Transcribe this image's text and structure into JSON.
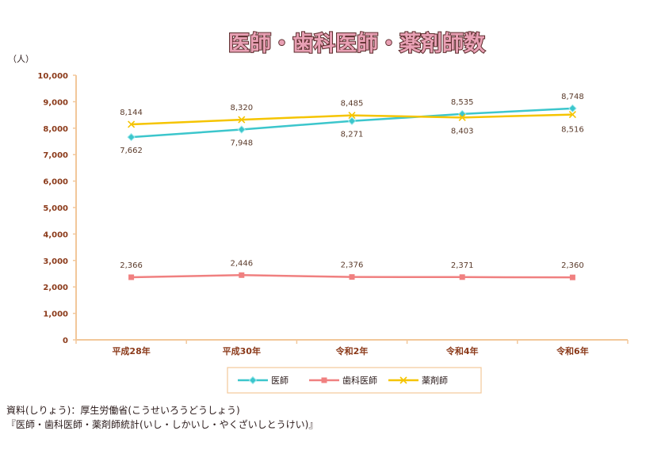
{
  "chart_data": {
    "type": "line",
    "title": "医師・歯科医師・薬剤師数",
    "ylabel": "（人）",
    "xlabel": "",
    "categories": [
      "平成28年",
      "平成30年",
      "令和2年",
      "令和4年",
      "令和6年"
    ],
    "ylim": [
      0,
      10000
    ],
    "yticks": [
      "0",
      "1,000",
      "2,000",
      "3,000",
      "4,000",
      "5,000",
      "6,000",
      "7,000",
      "8,000",
      "9,000",
      "10,000"
    ],
    "grid": false,
    "legend_position": "bottom",
    "series": [
      {
        "name": "医師",
        "values": [
          7662,
          7948,
          8271,
          8535,
          8748
        ],
        "labels": [
          "7,662",
          "7,948",
          "8,271",
          "8,535",
          "8,748"
        ],
        "color": "#3cc6cc",
        "marker": "diamond"
      },
      {
        "name": "歯科医師",
        "values": [
          2366,
          2446,
          2376,
          2371,
          2360
        ],
        "labels": [
          "2,366",
          "2,446",
          "2,376",
          "2,371",
          "2,360"
        ],
        "color": "#f08080",
        "marker": "square"
      },
      {
        "name": "薬剤師",
        "values": [
          8144,
          8320,
          8485,
          8403,
          8516
        ],
        "labels": [
          "8,144",
          "8,320",
          "8,485",
          "8,403",
          "8,516"
        ],
        "color": "#f5c400",
        "marker": "x"
      }
    ]
  },
  "source": {
    "line1": "資料(しりょう)：厚生労働省(こうせいろうどうしょう)",
    "line2": "『医師・歯科医師・薬剤師統計(いし・しかいし・やくざいしとうけい)』"
  },
  "colors": {
    "axis": "#f2c79a",
    "title_fill": "#e8a0b4",
    "title_stroke": "#5a2a2a",
    "label_text": "#5a3a2a",
    "tick_text": "#8b3a1a"
  }
}
